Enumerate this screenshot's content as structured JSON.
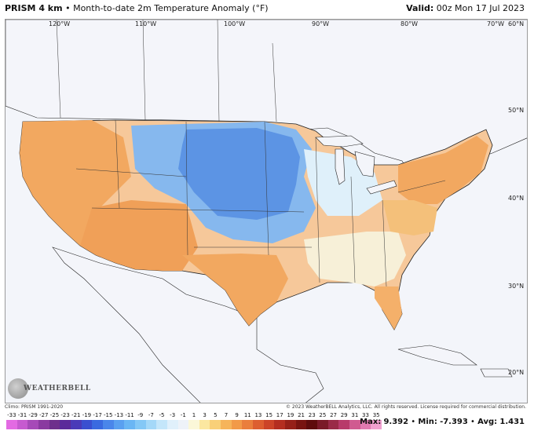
{
  "header": {
    "title_bold": "PRISM 4 km",
    "title_rest": "• Month-to-date 2m Temperature Anomaly (°F)",
    "valid_label": "Valid:",
    "valid_value": "00z Mon 17 Jul 2023"
  },
  "map": {
    "lon_labels": [
      "120°W",
      "110°W",
      "100°W",
      "90°W",
      "80°W",
      "70°W"
    ],
    "lat_labels": [
      "60°N",
      "50°N",
      "40°N",
      "30°N",
      "20°N"
    ]
  },
  "footer": {
    "climo": "Climo: PRISM 1991-2020",
    "copyright": "© 2023 WeatherBELL Analytics, LLC. All rights reserved. License required for commercial distribution."
  },
  "logo": {
    "text": "WEATHERBELL"
  },
  "colorbar": {
    "labels": [
      "-33",
      "-31",
      "-29",
      "-27",
      "-25",
      "-23",
      "-21",
      "-19",
      "-17",
      "-15",
      "-13",
      "-11",
      "-9",
      "-7",
      "-5",
      "-3",
      "-1",
      "1",
      "3",
      "5",
      "7",
      "9",
      "11",
      "13",
      "15",
      "17",
      "19",
      "21",
      "23",
      "25",
      "27",
      "29",
      "31",
      "33",
      "35"
    ],
    "colors": [
      "#e36ae3",
      "#c65ad0",
      "#a64ab8",
      "#8a3aa0",
      "#6e2f8c",
      "#5b2a9a",
      "#4a3ab8",
      "#3a4fd0",
      "#3a6ae0",
      "#4a86ea",
      "#5aa0f0",
      "#6ab6f4",
      "#84c8f6",
      "#a4d8f8",
      "#c4e6fa",
      "#e0f0fb",
      "#eef2f8",
      "#fbf7d8",
      "#fbe7a0",
      "#f9d078",
      "#f6b45a",
      "#f29a48",
      "#ea7e3c",
      "#dd5e30",
      "#cc4428",
      "#b42e20",
      "#962018",
      "#781410",
      "#5e0c0c",
      "#7a1a28",
      "#9a2a48",
      "#b83a6a",
      "#d05a90",
      "#e07ab0",
      "#f0a0d0"
    ]
  },
  "stats": {
    "max_label": "Max:",
    "max": "9.392",
    "min_label": "Min:",
    "min": "-7.393",
    "avg_label": "Avg:",
    "avg": "1.431"
  }
}
